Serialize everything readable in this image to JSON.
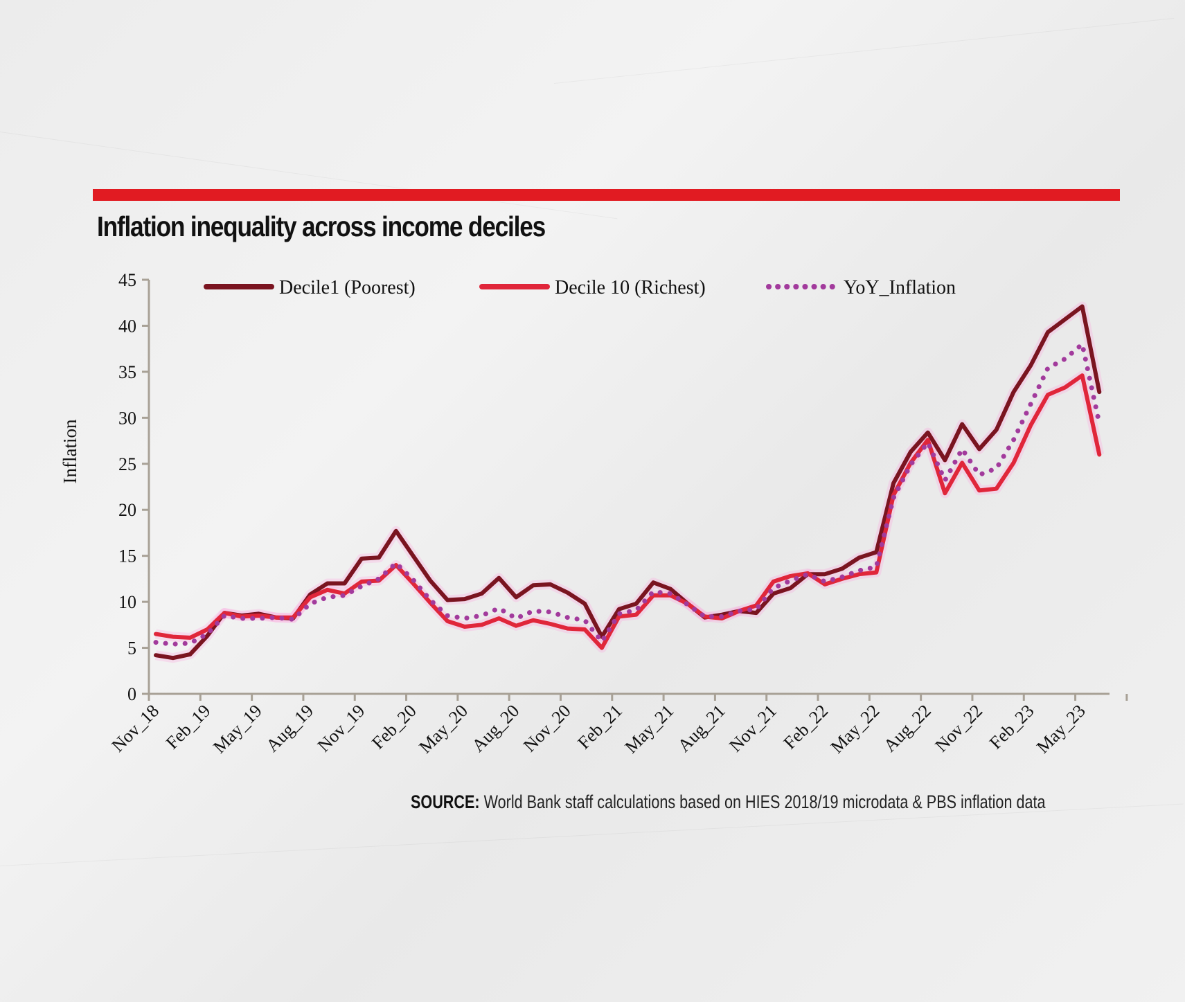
{
  "title": "Inflation inequality across income deciles",
  "source": {
    "label": "SOURCE:",
    "text": "World Bank staff calculations based on HIES 2018/19 microdata & PBS inflation data"
  },
  "colors": {
    "accent_bar": "#e11b22",
    "decile1": "#7a1420",
    "decile10": "#e0263a",
    "yoy": "#a23a9c",
    "axis": "#a8a196"
  },
  "chart_data": {
    "type": "line",
    "title": "Inflation inequality across income deciles",
    "xlabel": "",
    "ylabel": "Inflation",
    "ylim": [
      0,
      45
    ],
    "yticks": [
      0,
      5,
      10,
      15,
      20,
      25,
      30,
      35,
      40,
      45
    ],
    "grid": false,
    "legend_position": "top",
    "x": [
      "Nov_18",
      "Dec_18",
      "Jan_19",
      "Feb_19",
      "Mar_19",
      "Apr_19",
      "May_19",
      "Jun_19",
      "Jul_19",
      "Aug_19",
      "Sep_19",
      "Oct_19",
      "Nov_19",
      "Dec_19",
      "Jan_20",
      "Feb_20",
      "Mar_20",
      "Apr_20",
      "May_20",
      "Jun_20",
      "Jul_20",
      "Aug_20",
      "Sep_20",
      "Oct_20",
      "Nov_20",
      "Dec_20",
      "Jan_21",
      "Feb_21",
      "Mar_21",
      "Apr_21",
      "May_21",
      "Jun_21",
      "Jul_21",
      "Aug_21",
      "Sep_21",
      "Oct_21",
      "Nov_21",
      "Dec_21",
      "Jan_22",
      "Feb_22",
      "Mar_22",
      "Apr_22",
      "May_22",
      "Jun_22",
      "Jul_22",
      "Aug_22",
      "Sep_22",
      "Oct_22",
      "Nov_22",
      "Dec_22",
      "Jan_23",
      "Feb_23",
      "Mar_23",
      "Apr_23",
      "May_23",
      "Jun_23"
    ],
    "xtick_labels": [
      "Nov_18",
      "Feb_19",
      "May_19",
      "Aug_19",
      "Nov_19",
      "Feb_20",
      "May_20",
      "Aug_20",
      "Nov_20",
      "Feb_21",
      "May_21",
      "Aug_21",
      "Nov_21",
      "Feb_22",
      "May_22",
      "Aug_22",
      "Nov_22",
      "Feb_23",
      "May_23"
    ],
    "series": [
      {
        "name": "Decile1 (Poorest)",
        "style": "solid",
        "values": [
          4.2,
          3.9,
          4.3,
          6.3,
          8.8,
          8.5,
          8.7,
          8.3,
          8.2,
          10.8,
          12.0,
          12.0,
          14.7,
          14.8,
          17.7,
          15.0,
          12.3,
          10.2,
          10.3,
          10.9,
          12.6,
          10.5,
          11.8,
          11.9,
          11.0,
          9.8,
          6.2,
          9.2,
          9.8,
          12.1,
          11.4,
          9.8,
          8.3,
          8.6,
          9.0,
          8.8,
          10.9,
          11.5,
          13.0,
          13.0,
          13.6,
          14.8,
          15.4,
          22.9,
          26.3,
          28.4,
          25.4,
          29.3,
          26.6,
          28.7,
          32.8,
          35.7,
          39.3,
          40.7,
          42.1,
          32.8
        ]
      },
      {
        "name": "Decile 10 (Richest)",
        "style": "solid",
        "values": [
          6.5,
          6.2,
          6.1,
          7.0,
          8.8,
          8.4,
          8.5,
          8.3,
          8.3,
          10.5,
          11.3,
          10.9,
          12.2,
          12.3,
          14.0,
          12.0,
          9.9,
          7.9,
          7.3,
          7.5,
          8.2,
          7.4,
          8.0,
          7.6,
          7.1,
          7.0,
          5.0,
          8.4,
          8.6,
          10.7,
          10.7,
          9.8,
          8.4,
          8.2,
          9.0,
          9.6,
          12.2,
          12.8,
          13.1,
          11.9,
          12.5,
          13.0,
          13.2,
          21.6,
          25.1,
          27.6,
          21.8,
          25.1,
          22.1,
          22.3,
          25.1,
          29.2,
          32.5,
          33.3,
          34.6,
          26.0
        ]
      },
      {
        "name": "YoY_Inflation",
        "style": "dotted",
        "values": [
          5.6,
          5.4,
          5.5,
          6.5,
          8.5,
          8.2,
          8.2,
          8.3,
          8.1,
          9.8,
          10.5,
          10.7,
          11.7,
          12.5,
          14.2,
          12.4,
          10.2,
          8.5,
          8.2,
          8.5,
          9.3,
          8.2,
          9.0,
          8.9,
          8.3,
          8.0,
          5.7,
          8.7,
          9.1,
          11.1,
          10.9,
          9.7,
          8.4,
          8.4,
          9.0,
          9.2,
          11.5,
          12.3,
          13.0,
          12.2,
          12.7,
          13.4,
          13.8,
          21.3,
          24.9,
          27.3,
          23.2,
          26.6,
          23.8,
          24.5,
          27.6,
          31.5,
          35.4,
          36.4,
          38.0,
          29.4
        ]
      }
    ]
  }
}
